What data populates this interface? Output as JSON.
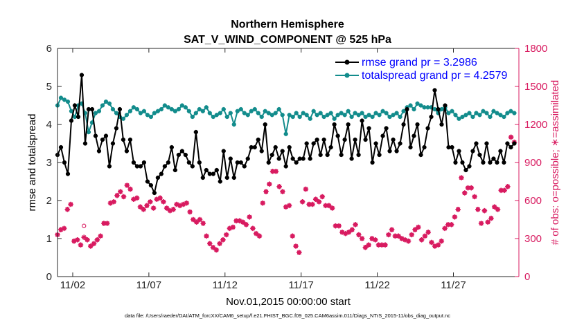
{
  "chart_data": {
    "type": "line",
    "title": "Northern Hemisphere",
    "subtitle": "SAT_V_WIND_COMPONENT @ 525 hPa",
    "xlabel": "Nov.01,2015 00:00:00 start",
    "ylabel_left": "rmse and totalspread",
    "ylabel_right": "# of obs: o=possible; ∗=assimilated",
    "footnote": "data file: /Users/raeder/DAI/ATM_forcXX/CAM6_setup/f.e21.FHIST_BGC.f09_025.CAM6assim.011/Diags_NTrS_2015-11/obs_diag_output.nc",
    "x_range": [
      0.5,
      30.8
    ],
    "ylim_left": [
      0,
      6
    ],
    "ylim_right": [
      0,
      1800
    ],
    "x_ticks": [
      1.5,
      6.5,
      11.5,
      16.5,
      21.5,
      26.5
    ],
    "x_tick_labels": [
      "11/02",
      "11/07",
      "11/12",
      "11/17",
      "11/22",
      "11/27"
    ],
    "y_ticks_left": [
      0,
      1,
      2,
      3,
      4,
      5,
      6
    ],
    "y_ticks_right": [
      0,
      300,
      600,
      900,
      1200,
      1500,
      1800
    ],
    "legend_location": "top-right",
    "colors": {
      "rmse": "#000000",
      "spread": "#128c8c",
      "obs": "#d81b60",
      "right_axis": "#d81b60",
      "legend_text": "#0000ff"
    },
    "series": [
      {
        "name": "rmse grand pr = 3.2986",
        "marker": "o",
        "values": [
          3.2,
          3.4,
          3.0,
          2.7,
          4.1,
          4.5,
          4.2,
          5.3,
          3.5,
          4.4,
          4.4,
          3.7,
          3.3,
          3.6,
          3.7,
          2.9,
          3.5,
          3.9,
          4.4,
          3.6,
          3.3,
          3.6,
          3.0,
          2.9,
          2.9,
          3.0,
          2.5,
          2.4,
          2.2,
          2.6,
          2.7,
          2.9,
          3.0,
          3.4,
          2.8,
          3.2,
          3.3,
          3.2,
          3.0,
          2.9,
          3.8,
          3.0,
          2.6,
          2.8,
          2.7,
          2.7,
          2.8,
          2.5,
          3.3,
          2.6,
          3.1,
          2.6,
          3.0,
          3.0,
          2.9,
          3.1,
          3.4,
          3.4,
          3.6,
          3.3,
          4.0,
          3.0,
          3.2,
          3.4,
          3.1,
          3.3,
          2.9,
          3.4,
          3.1,
          3.0,
          3.1,
          3.1,
          3.5,
          3.1,
          3.5,
          3.6,
          3.2,
          3.6,
          3.2,
          3.4,
          4.0,
          3.7,
          3.2,
          3.6,
          4.0,
          3.1,
          3.6,
          3.2,
          4.1,
          3.6,
          3.9,
          3.0,
          3.5,
          3.2,
          3.7,
          3.9,
          3.3,
          3.6,
          3.3,
          3.5,
          4.0,
          4.4,
          3.4,
          3.7,
          4.0,
          3.2,
          3.4,
          3.9,
          4.2,
          4.9,
          4.4,
          4.0,
          4.5,
          3.4,
          3.4,
          3.0,
          3.3,
          3.0,
          2.8,
          2.9,
          3.3,
          3.5,
          3.2,
          3.0,
          3.5,
          3.0,
          3.1,
          3.0,
          3.3,
          3.0,
          3.5,
          3.4,
          3.5
        ]
      },
      {
        "name": "totalspread grand pr = 4.2579",
        "marker": "o",
        "values": [
          4.5,
          4.7,
          4.65,
          4.6,
          4.35,
          4.2,
          4.5,
          4.55,
          4.3,
          3.8,
          4.05,
          4.3,
          4.35,
          4.5,
          4.6,
          4.55,
          4.4,
          4.3,
          4.2,
          4.15,
          4.25,
          4.35,
          4.45,
          4.4,
          4.3,
          4.35,
          4.25,
          4.2,
          4.3,
          4.35,
          4.4,
          4.5,
          4.45,
          4.4,
          4.35,
          4.4,
          4.5,
          4.45,
          4.35,
          4.2,
          4.3,
          4.4,
          4.35,
          4.45,
          4.3,
          4.2,
          4.25,
          4.3,
          4.4,
          4.2,
          4.3,
          4.0,
          4.35,
          4.4,
          4.3,
          4.25,
          4.35,
          4.4,
          4.3,
          4.2,
          4.35,
          4.3,
          4.25,
          4.3,
          4.4,
          4.25,
          3.75,
          4.25,
          4.2,
          4.3,
          4.2,
          4.3,
          4.25,
          4.15,
          4.35,
          4.25,
          4.3,
          4.2,
          4.25,
          4.3,
          4.15,
          4.25,
          4.3,
          4.25,
          4.35,
          4.2,
          4.3,
          4.25,
          4.3,
          4.2,
          4.25,
          4.2,
          4.3,
          4.25,
          4.35,
          4.3,
          4.2,
          4.25,
          4.3,
          4.2,
          4.35,
          4.45,
          4.5,
          4.4,
          4.55,
          4.5,
          4.45,
          4.45,
          4.45,
          4.4,
          4.3,
          4.4,
          4.45,
          4.3,
          4.35,
          4.25,
          4.15,
          4.2,
          4.25,
          4.3,
          4.2,
          4.3,
          4.25,
          4.35,
          4.3,
          4.2,
          4.35,
          4.3,
          4.25,
          4.2,
          4.3,
          4.35,
          4.3
        ]
      },
      {
        "name": "# of obs assimilated",
        "axis": "right",
        "marker": "*",
        "values": [
          330,
          370,
          380,
          530,
          570,
          280,
          290,
          250,
          310,
          290,
          240,
          260,
          290,
          320,
          420,
          420,
          580,
          590,
          640,
          670,
          630,
          720,
          690,
          610,
          620,
          550,
          530,
          560,
          590,
          540,
          610,
          620,
          590,
          540,
          520,
          530,
          570,
          560,
          570,
          580,
          510,
          450,
          430,
          450,
          420,
          320,
          260,
          230,
          210,
          260,
          290,
          330,
          380,
          390,
          440,
          440,
          430,
          410,
          470,
          380,
          340,
          320,
          580,
          670,
          730,
          830,
          830,
          710,
          670,
          550,
          560,
          320,
          240,
          190,
          590,
          690,
          570,
          570,
          610,
          590,
          630,
          560,
          560,
          540,
          400,
          400,
          350,
          340,
          350,
          370,
          410,
          330,
          300,
          230,
          250,
          300,
          290,
          250,
          250,
          250,
          330,
          370,
          320,
          320,
          300,
          290,
          280,
          330,
          370,
          390,
          290,
          320,
          350,
          270,
          240,
          250,
          280,
          380,
          410,
          410,
          470,
          530,
          780,
          660,
          700,
          700,
          630,
          530,
          420,
          520,
          430,
          460,
          550,
          530,
          680,
          680,
          710,
          1100,
          1060
        ]
      },
      {
        "name": "# of obs possible",
        "axis": "right",
        "marker": "o",
        "values": [
          330,
          370,
          380,
          530,
          570,
          280,
          290,
          250,
          400,
          290,
          240,
          260,
          290,
          320,
          420,
          420,
          580,
          590,
          640,
          670,
          630,
          720,
          690,
          610,
          620,
          550,
          530,
          560,
          590,
          540,
          610,
          620,
          590,
          540,
          520,
          530,
          570,
          560,
          570,
          580,
          510,
          450,
          430,
          450,
          420,
          320,
          260,
          230,
          210,
          260,
          290,
          330,
          380,
          390,
          440,
          440,
          430,
          410,
          470,
          380,
          340,
          320,
          580,
          670,
          730,
          830,
          830,
          710,
          670,
          550,
          560,
          320,
          240,
          190,
          590,
          690,
          570,
          570,
          610,
          590,
          630,
          560,
          560,
          540,
          400,
          400,
          350,
          340,
          350,
          370,
          410,
          330,
          300,
          230,
          250,
          300,
          290,
          250,
          250,
          250,
          330,
          370,
          320,
          320,
          300,
          290,
          280,
          330,
          370,
          390,
          290,
          320,
          350,
          270,
          240,
          250,
          280,
          380,
          410,
          410,
          470,
          530,
          780,
          660,
          700,
          700,
          630,
          530,
          420,
          520,
          430,
          460,
          550,
          530,
          680,
          680,
          710,
          1100,
          1060
        ]
      }
    ]
  }
}
